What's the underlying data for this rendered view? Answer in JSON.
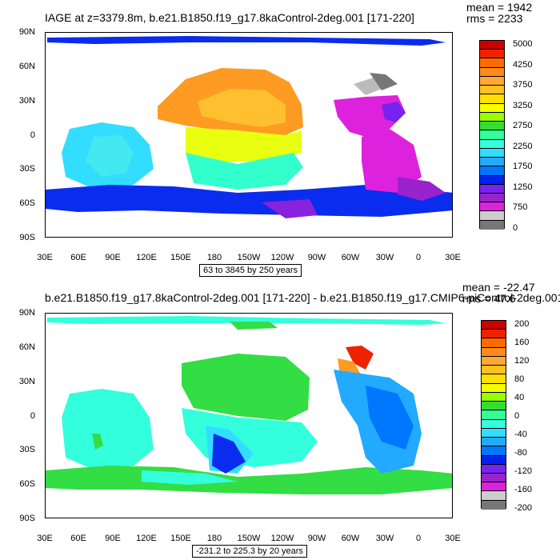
{
  "panels": [
    {
      "title": "IAGE at z=3379.8m, b.e21.B1850.f19_g17.8kaControl-2deg.001 [171-220]",
      "mean": "mean = 1942",
      "rms": "rms = 2233",
      "range_text": "63 to 3845 by 250 years",
      "colorbar_labels": [
        "5000",
        "4250",
        "3750",
        "3250",
        "2750",
        "2250",
        "1750",
        "1250",
        "750",
        "0"
      ],
      "colorbar_colors": [
        "#cc0000",
        "#ee2200",
        "#ff6a00",
        "#ff8c1a",
        "#ffa833",
        "#ffc020",
        "#ffe000",
        "#f5ff00",
        "#99ff00",
        "#33dd33",
        "#33ff99",
        "#33ffdd",
        "#33ddff",
        "#22aaff",
        "#0077ff",
        "#0022ee",
        "#7722ee",
        "#9922cc",
        "#dd22dd",
        "#cccccc",
        "#777777"
      ]
    },
    {
      "title": "b.e21.B1850.f19_g17.8kaControl-2deg.001 [171-220] - b.e21.B1850.f19_g17.CMIP6-piControl-2deg.001",
      "mean": "mean = -22.47",
      "rms": "rms = 47.6",
      "range_text": "-231.2 to 225.3 by 20 years",
      "colorbar_labels": [
        "200",
        "160",
        "120",
        "80",
        "40",
        "0",
        "-40",
        "-80",
        "-120",
        "-160",
        "-200"
      ],
      "colorbar_colors": [
        "#cc0000",
        "#ee2200",
        "#ff6a00",
        "#ff8c1a",
        "#ffa833",
        "#ffc020",
        "#ffe000",
        "#f5ff00",
        "#99ff00",
        "#33dd33",
        "#33ff99",
        "#33ffdd",
        "#33ddff",
        "#22aaff",
        "#0077ff",
        "#0022ee",
        "#7722ee",
        "#9922cc",
        "#dd22dd",
        "#cccccc",
        "#777777"
      ]
    }
  ],
  "y_ticks": [
    "90N",
    "60N",
    "30N",
    "0",
    "30S",
    "60S",
    "90S"
  ],
  "x_ticks": [
    "30E",
    "60E",
    "90E",
    "120E",
    "150E",
    "180",
    "150W",
    "120W",
    "90W",
    "60W",
    "30W",
    "0",
    "30E"
  ]
}
